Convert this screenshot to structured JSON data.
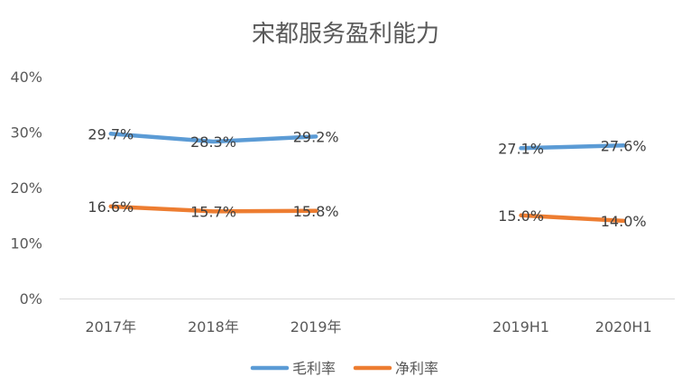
{
  "chart_data": {
    "type": "line",
    "title": "宋都服务盈利能力",
    "categories": [
      "2017年",
      "2018年",
      "2019年",
      "",
      "2019H1",
      "2020H1"
    ],
    "y_ticks": [
      "0%",
      "10%",
      "20%",
      "30%",
      "40%"
    ],
    "ylim": [
      0,
      40
    ],
    "series": [
      {
        "name": "毛利率",
        "color": "#5B9BD5",
        "values": [
          29.7,
          28.3,
          29.2,
          null,
          27.1,
          27.6
        ],
        "labels": [
          "29.7%",
          "28.3%",
          "29.2%",
          "",
          "27.1%",
          "27.6%"
        ]
      },
      {
        "name": "净利率",
        "color": "#ED7D31",
        "values": [
          16.6,
          15.7,
          15.8,
          null,
          15.0,
          14.0
        ],
        "labels": [
          "16.6%",
          "15.7%",
          "15.8%",
          "",
          "15.0%",
          "14.0%"
        ]
      }
    ],
    "legend_position": "bottom",
    "grid": false
  }
}
